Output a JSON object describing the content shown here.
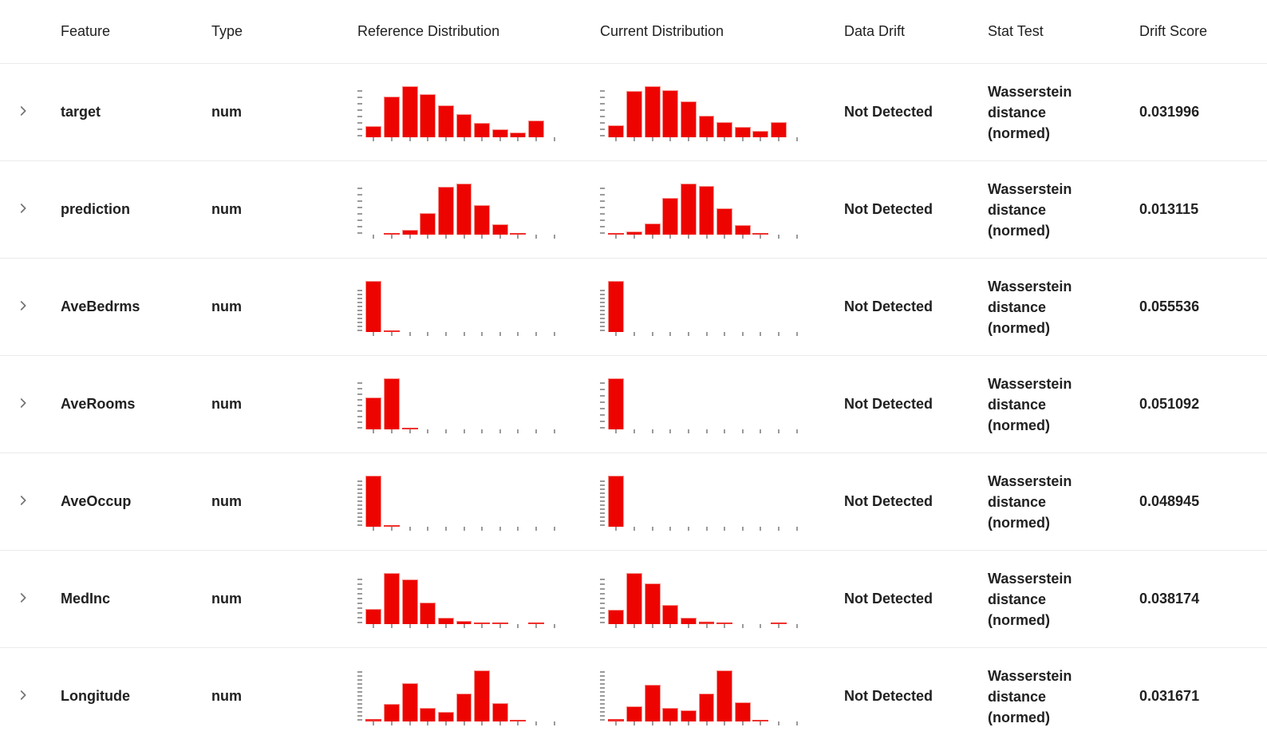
{
  "colors": {
    "bar": "#ed0400",
    "bar_border": "#f6958f",
    "tick": "#9b9b9b",
    "text": "#212121",
    "row_border": "#ebebeb",
    "chevron": "#757575"
  },
  "columns": {
    "feature": "Feature",
    "type": "Type",
    "reference": "Reference Distribution",
    "current": "Current Distribution",
    "data_drift": "Data Drift",
    "stat_test": "Stat Test",
    "drift_score": "Drift Score"
  },
  "rows": [
    {
      "feature": "target",
      "type": "num",
      "data_drift": "Not Detected",
      "stat_test": "Wasserstein distance (normed)",
      "drift_score": "0.031996",
      "reference": {
        "type": "histogram",
        "yticks": 8,
        "bars": [
          0.22,
          0.8,
          1.0,
          0.85,
          0.62,
          0.45,
          0.28,
          0.16,
          0.09,
          0.33,
          0
        ]
      },
      "current": {
        "type": "histogram",
        "yticks": 8,
        "bars": [
          0.24,
          0.9,
          1.0,
          0.92,
          0.7,
          0.42,
          0.3,
          0.2,
          0.12,
          0.3,
          0
        ]
      }
    },
    {
      "feature": "prediction",
      "type": "num",
      "data_drift": "Not Detected",
      "stat_test": "Wasserstein distance (normed)",
      "drift_score": "0.013115",
      "reference": {
        "type": "histogram",
        "yticks": 8,
        "bars": [
          0,
          0.02,
          0.1,
          0.42,
          0.93,
          1.0,
          0.58,
          0.2,
          0.02,
          0,
          0
        ]
      },
      "current": {
        "type": "histogram",
        "yticks": 8,
        "bars": [
          0.02,
          0.07,
          0.22,
          0.72,
          1.0,
          0.95,
          0.52,
          0.18,
          0.02,
          0,
          0
        ]
      }
    },
    {
      "feature": "AveBedrms",
      "type": "num",
      "data_drift": "Not Detected",
      "stat_test": "Wasserstein distance (normed)",
      "drift_score": "0.055536",
      "reference": {
        "type": "histogram",
        "yticks": 11,
        "bars": [
          1.0,
          0.03,
          0,
          0,
          0,
          0,
          0,
          0,
          0,
          0,
          0
        ]
      },
      "current": {
        "type": "histogram",
        "yticks": 11,
        "bars": [
          1.0,
          0,
          0,
          0,
          0,
          0,
          0,
          0,
          0,
          0,
          0
        ]
      }
    },
    {
      "feature": "AveRooms",
      "type": "num",
      "data_drift": "Not Detected",
      "stat_test": "Wasserstein distance (normed)",
      "drift_score": "0.051092",
      "reference": {
        "type": "histogram",
        "yticks": 9,
        "bars": [
          0.62,
          1.0,
          0.03,
          0,
          0,
          0,
          0,
          0,
          0,
          0,
          0
        ]
      },
      "current": {
        "type": "histogram",
        "yticks": 8,
        "bars": [
          1.0,
          0,
          0,
          0,
          0,
          0,
          0,
          0,
          0,
          0,
          0
        ]
      }
    },
    {
      "feature": "AveOccup",
      "type": "num",
      "data_drift": "Not Detected",
      "stat_test": "Wasserstein distance (normed)",
      "drift_score": "0.048945",
      "reference": {
        "type": "histogram",
        "yticks": 12,
        "bars": [
          1.0,
          0.02,
          0,
          0,
          0,
          0,
          0,
          0,
          0,
          0,
          0
        ]
      },
      "current": {
        "type": "histogram",
        "yticks": 12,
        "bars": [
          1.0,
          0,
          0,
          0,
          0,
          0,
          0,
          0,
          0,
          0,
          0
        ]
      }
    },
    {
      "feature": "MedInc",
      "type": "num",
      "data_drift": "Not Detected",
      "stat_test": "Wasserstein distance (normed)",
      "drift_score": "0.038174",
      "reference": {
        "type": "histogram",
        "yticks": 10,
        "bars": [
          0.3,
          1.0,
          0.87,
          0.42,
          0.12,
          0.06,
          0.02,
          0.02,
          0,
          0.02,
          0
        ]
      },
      "current": {
        "type": "histogram",
        "yticks": 10,
        "bars": [
          0.28,
          1.0,
          0.8,
          0.38,
          0.12,
          0.05,
          0.02,
          0,
          0,
          0.02,
          0
        ]
      }
    },
    {
      "feature": "Longitude",
      "type": "num",
      "data_drift": "Not Detected",
      "stat_test": "Wasserstein distance (normed)",
      "drift_score": "0.031671",
      "reference": {
        "type": "histogram",
        "yticks": 13,
        "bars": [
          0.04,
          0.35,
          0.75,
          0.26,
          0.19,
          0.55,
          1.0,
          0.36,
          0.03,
          0,
          0
        ]
      },
      "current": {
        "type": "histogram",
        "yticks": 13,
        "bars": [
          0.05,
          0.3,
          0.72,
          0.27,
          0.22,
          0.55,
          1.0,
          0.37,
          0.03,
          0,
          0
        ]
      }
    }
  ]
}
